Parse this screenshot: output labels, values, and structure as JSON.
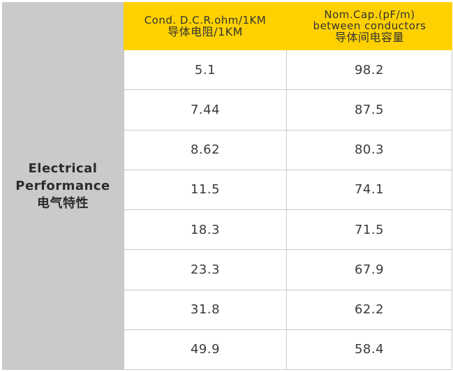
{
  "side_label": {
    "lines": [
      "Electrical",
      "Performance",
      "电气特性"
    ]
  },
  "header": {
    "columns": [
      {
        "lines": [
          "Cond. D.C.R.ohm/1KM",
          "导体电阻/1KM"
        ]
      },
      {
        "lines": [
          "Nom.Cap.(pF/m)",
          "between conductors",
          "导体间电容量"
        ]
      }
    ]
  },
  "table": {
    "rows": [
      [
        "5.1",
        "98.2"
      ],
      [
        "7.44",
        "87.5"
      ],
      [
        "8.62",
        "80.3"
      ],
      [
        "11.5",
        "74.1"
      ],
      [
        "18.3",
        "71.5"
      ],
      [
        "23.3",
        "67.9"
      ],
      [
        "31.8",
        "62.2"
      ],
      [
        "49.9",
        "58.4"
      ]
    ]
  }
}
